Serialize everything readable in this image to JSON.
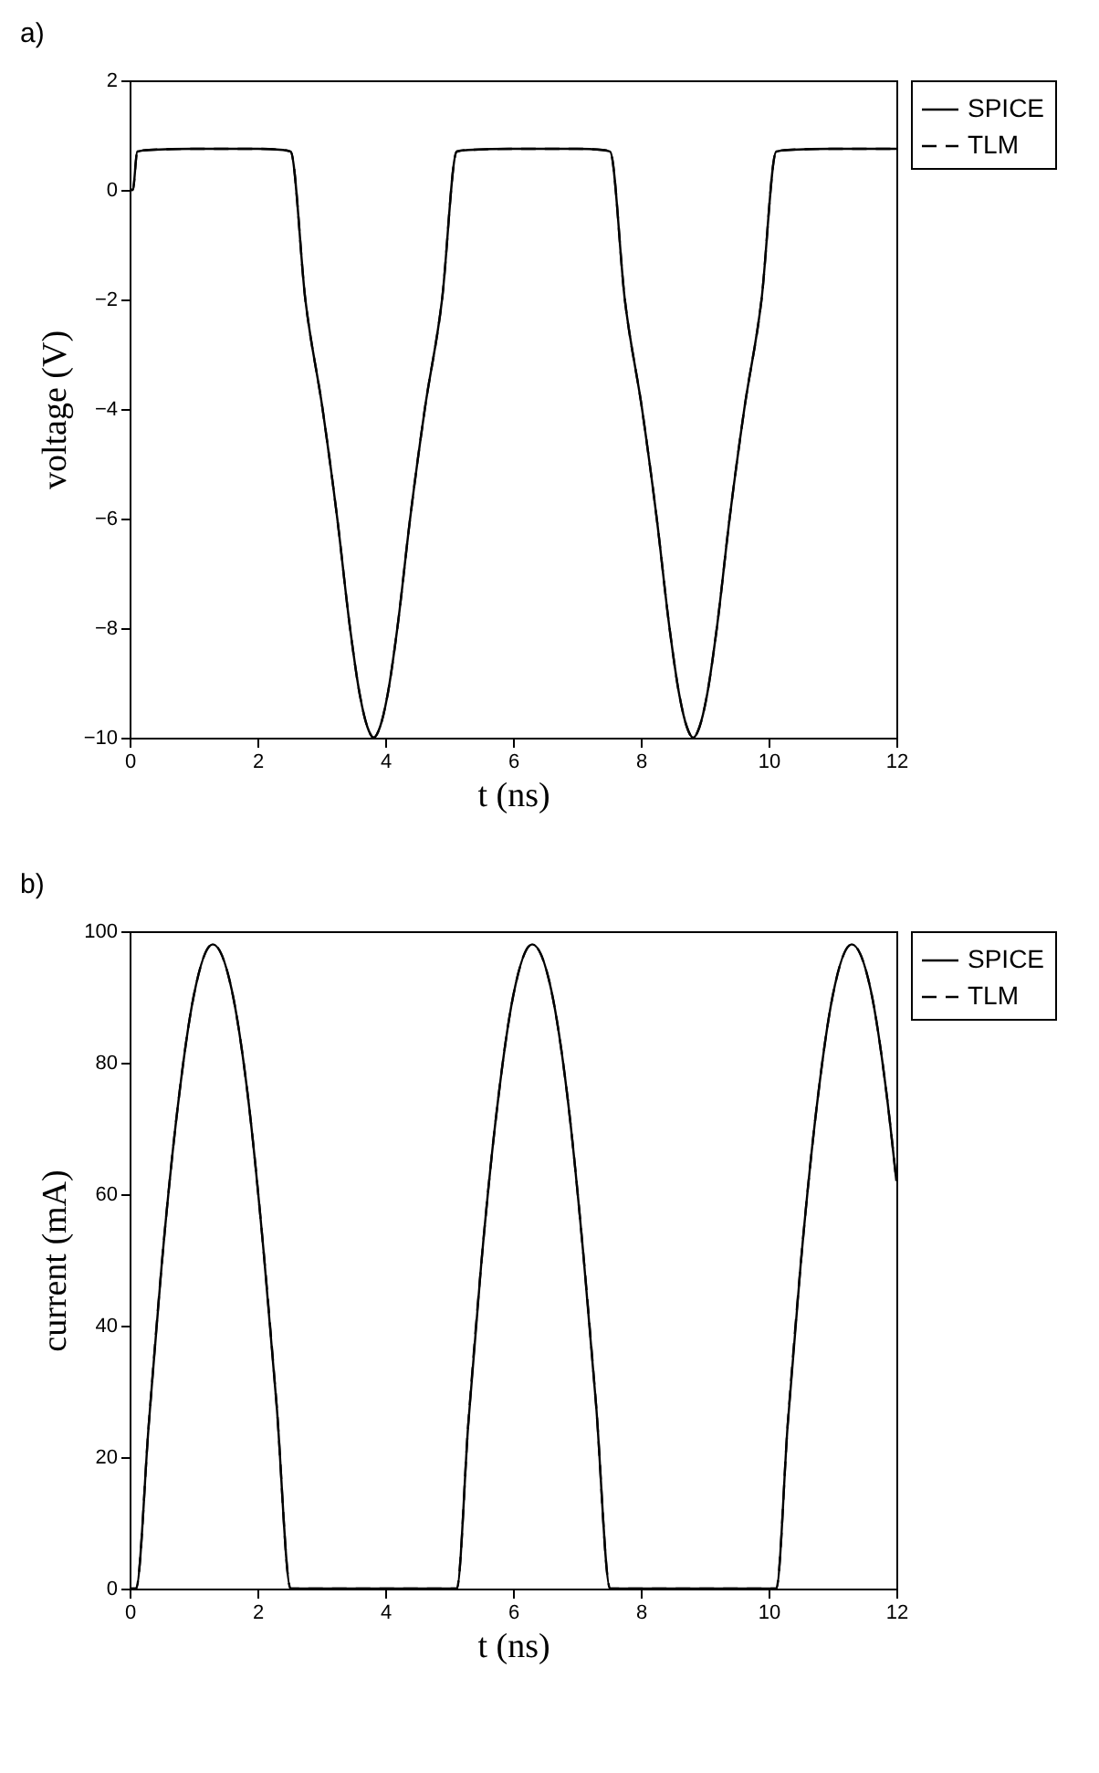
{
  "chart_data": [
    {
      "type": "line",
      "title": "a)",
      "xlabel": "t (ns)",
      "ylabel": "voltage (V)",
      "xlim": [
        0,
        12
      ],
      "xticks": [
        0,
        2,
        4,
        6,
        8,
        10,
        12
      ],
      "ylim": [
        -10,
        2
      ],
      "yticks": [
        -10,
        -8,
        -6,
        -4,
        -2,
        0,
        2
      ],
      "legend": "right",
      "x": [
        0,
        0.05,
        0.12,
        0.3,
        1,
        2,
        2.4,
        2.52,
        2.75,
        3.02,
        3.25,
        3.45,
        3.6,
        3.72,
        3.82,
        3.92,
        4.04,
        4.19,
        4.39,
        4.62,
        4.89,
        5.12,
        5.3,
        6,
        7,
        7.4,
        7.52,
        7.75,
        8.02,
        8.25,
        8.45,
        8.6,
        8.72,
        8.82,
        8.92,
        9.04,
        9.19,
        9.39,
        9.62,
        9.89,
        10.12,
        10.3,
        11,
        12
      ],
      "series": [
        {
          "name": "SPICE",
          "color": "#000000",
          "line_style": "solid",
          "values": [
            0,
            0,
            0.7,
            0.73,
            0.75,
            0.75,
            0.73,
            0.7,
            -2,
            -4,
            -6,
            -8,
            -9.2,
            -9.8,
            -10,
            -9.8,
            -9.2,
            -8,
            -6,
            -4,
            -2,
            0.7,
            0.73,
            0.75,
            0.75,
            0.73,
            0.7,
            -2,
            -4,
            -6,
            -8,
            -9.2,
            -9.8,
            -10,
            -9.8,
            -9.2,
            -8,
            -6,
            -4,
            -2,
            0.7,
            0.73,
            0.75,
            0.75
          ]
        },
        {
          "name": "TLM",
          "color": "#000000",
          "line_style": "dashed",
          "values": [
            0,
            0,
            0.7,
            0.73,
            0.75,
            0.75,
            0.73,
            0.7,
            -2,
            -4,
            -6,
            -8,
            -9.2,
            -9.8,
            -10,
            -9.8,
            -9.2,
            -8,
            -6,
            -4,
            -2,
            0.7,
            0.73,
            0.75,
            0.75,
            0.73,
            0.7,
            -2,
            -4,
            -6,
            -8,
            -9.2,
            -9.8,
            -10,
            -9.8,
            -9.2,
            -8,
            -6,
            -4,
            -2,
            0.7,
            0.73,
            0.75,
            0.75
          ]
        }
      ]
    },
    {
      "type": "line",
      "title": "b)",
      "xlabel": "t (ns)",
      "ylabel": "current (mA)",
      "xlim": [
        0,
        12
      ],
      "xticks": [
        0,
        2,
        4,
        6,
        8,
        10,
        12
      ],
      "ylim": [
        0,
        100
      ],
      "yticks": [
        0,
        20,
        40,
        60,
        80,
        100
      ],
      "legend": "right",
      "x": [
        0,
        0.1,
        0.3,
        0.5,
        0.75,
        1,
        1.3,
        1.6,
        1.85,
        2.1,
        2.3,
        2.52,
        3,
        4,
        5.12,
        5.3,
        5.5,
        5.75,
        6,
        6.3,
        6.6,
        6.85,
        7.1,
        7.3,
        7.52,
        8,
        9,
        10.12,
        10.3,
        10.5,
        10.75,
        11,
        11.3,
        11.6,
        11.85,
        12
      ],
      "series": [
        {
          "name": "SPICE",
          "color": "#000000",
          "line_style": "solid",
          "values": [
            0,
            0,
            25,
            49,
            73,
            90,
            98,
            91,
            75,
            51,
            28,
            0,
            0,
            0,
            0,
            25,
            49,
            73,
            90,
            98,
            91,
            75,
            51,
            28,
            0,
            0,
            0,
            0,
            25,
            49,
            73,
            90,
            98,
            91,
            75,
            62
          ]
        },
        {
          "name": "TLM",
          "color": "#000000",
          "line_style": "dashed",
          "values": [
            0,
            0,
            25,
            49,
            73,
            90,
            98,
            91,
            75,
            51,
            28,
            0,
            0,
            0,
            0,
            25,
            49,
            73,
            90,
            98,
            91,
            75,
            51,
            28,
            0,
            0,
            0,
            0,
            25,
            49,
            73,
            90,
            98,
            91,
            75,
            62
          ]
        }
      ]
    }
  ]
}
